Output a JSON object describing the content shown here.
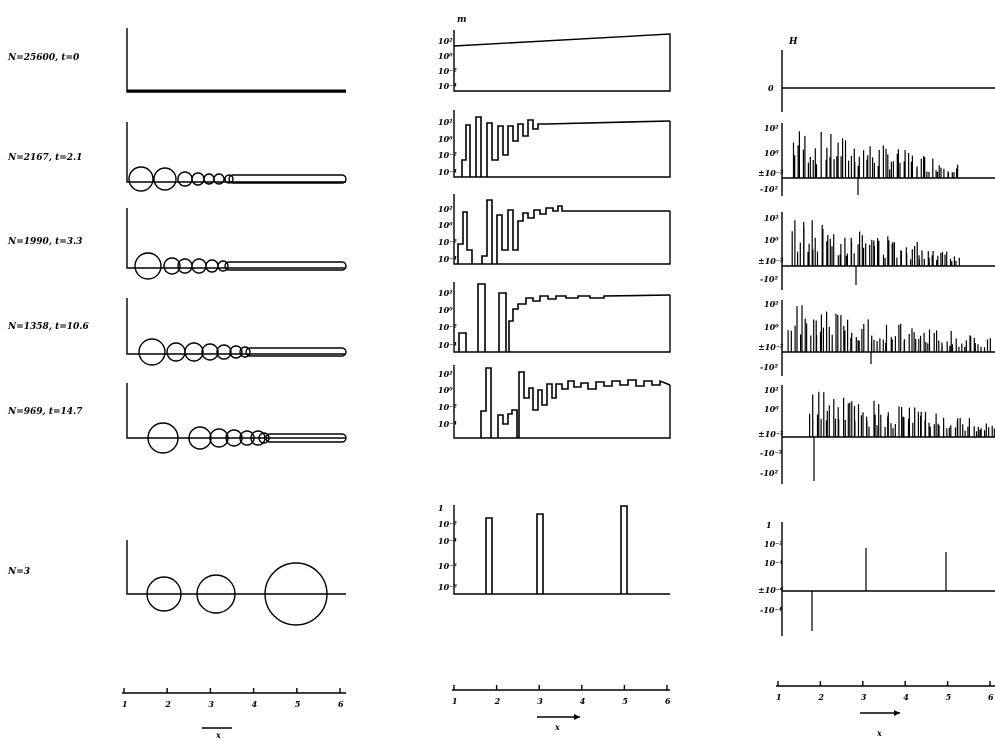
{
  "rows": [
    {
      "label": "N=25600, t=0"
    },
    {
      "label": "N=2167, t=2.1"
    },
    {
      "label": "N=1990, t=3.3"
    },
    {
      "label": "N=1358, t=10.6"
    },
    {
      "label": "N=969, t=14.7"
    },
    {
      "label": "N=3"
    }
  ],
  "middle_ylabel": "m",
  "right_ylabel": "H",
  "xaxis": {
    "ticks": [
      "1",
      "2",
      "3",
      "4",
      "5",
      "6"
    ],
    "label": "x"
  }
}
